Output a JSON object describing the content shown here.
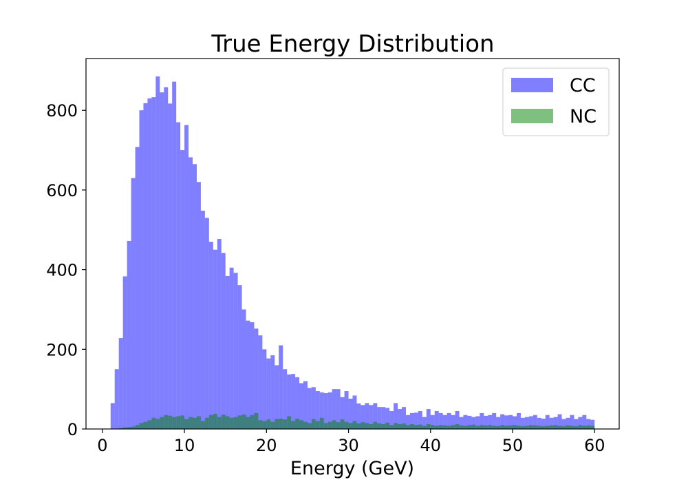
{
  "chart_data": {
    "type": "bar",
    "title": "True Energy Distribution",
    "xlabel": "Energy (GeV)",
    "ylabel": "",
    "xlim": [
      -2.0,
      63.0
    ],
    "ylim": [
      0,
      930
    ],
    "xticks": [
      0,
      10,
      20,
      30,
      40,
      50,
      60
    ],
    "yticks": [
      0,
      200,
      400,
      600,
      800
    ],
    "grid": false,
    "legend_position": "top-right",
    "bin_start": 1.0,
    "bin_width": 0.5,
    "series": [
      {
        "name": "CC",
        "color": "#0000ff",
        "opacity": 0.5,
        "values": [
          65,
          150,
          228,
          383,
          472,
          630,
          708,
          800,
          818,
          830,
          833,
          885,
          845,
          858,
          817,
          872,
          770,
          700,
          763,
          682,
          665,
          620,
          548,
          530,
          470,
          450,
          477,
          442,
          384,
          405,
          392,
          361,
          300,
          272,
          268,
          252,
          235,
          200,
          177,
          185,
          160,
          210,
          150,
          137,
          138,
          130,
          115,
          120,
          103,
          105,
          95,
          92,
          90,
          92,
          100,
          100,
          80,
          95,
          76,
          84,
          64,
          60,
          65,
          60,
          65,
          55,
          55,
          53,
          45,
          65,
          50,
          55,
          35,
          40,
          41,
          45,
          30,
          50,
          35,
          45,
          40,
          35,
          40,
          35,
          45,
          30,
          35,
          33,
          30,
          32,
          40,
          33,
          35,
          40,
          30,
          37,
          34,
          35,
          32,
          40,
          28,
          30,
          32,
          35,
          28,
          26,
          35,
          28,
          30,
          37,
          25,
          28,
          35,
          25,
          30,
          35,
          25,
          23
        ]
      },
      {
        "name": "NC",
        "color": "#008000",
        "opacity": 0.5,
        "values": [
          0,
          0,
          2,
          4,
          5,
          6,
          10,
          15,
          18,
          22,
          28,
          25,
          30,
          35,
          33,
          30,
          32,
          34,
          25,
          30,
          28,
          32,
          20,
          28,
          35,
          38,
          30,
          36,
          32,
          28,
          30,
          34,
          36,
          30,
          35,
          40,
          22,
          20,
          24,
          18,
          25,
          26,
          24,
          32,
          20,
          26,
          22,
          18,
          15,
          25,
          20,
          28,
          15,
          18,
          22,
          17,
          24,
          18,
          15,
          20,
          14,
          17,
          15,
          12,
          18,
          14,
          12,
          16,
          10,
          15,
          12,
          14,
          10,
          12,
          10,
          11,
          8,
          12,
          10,
          8,
          10,
          9,
          8,
          10,
          12,
          9,
          8,
          10,
          11,
          8,
          10,
          9,
          10,
          8,
          7,
          10,
          8,
          9,
          10,
          8,
          7,
          8,
          10,
          9,
          8,
          7,
          8,
          9,
          10,
          8,
          7,
          9,
          8,
          7,
          10,
          8,
          9,
          8
        ]
      }
    ]
  }
}
